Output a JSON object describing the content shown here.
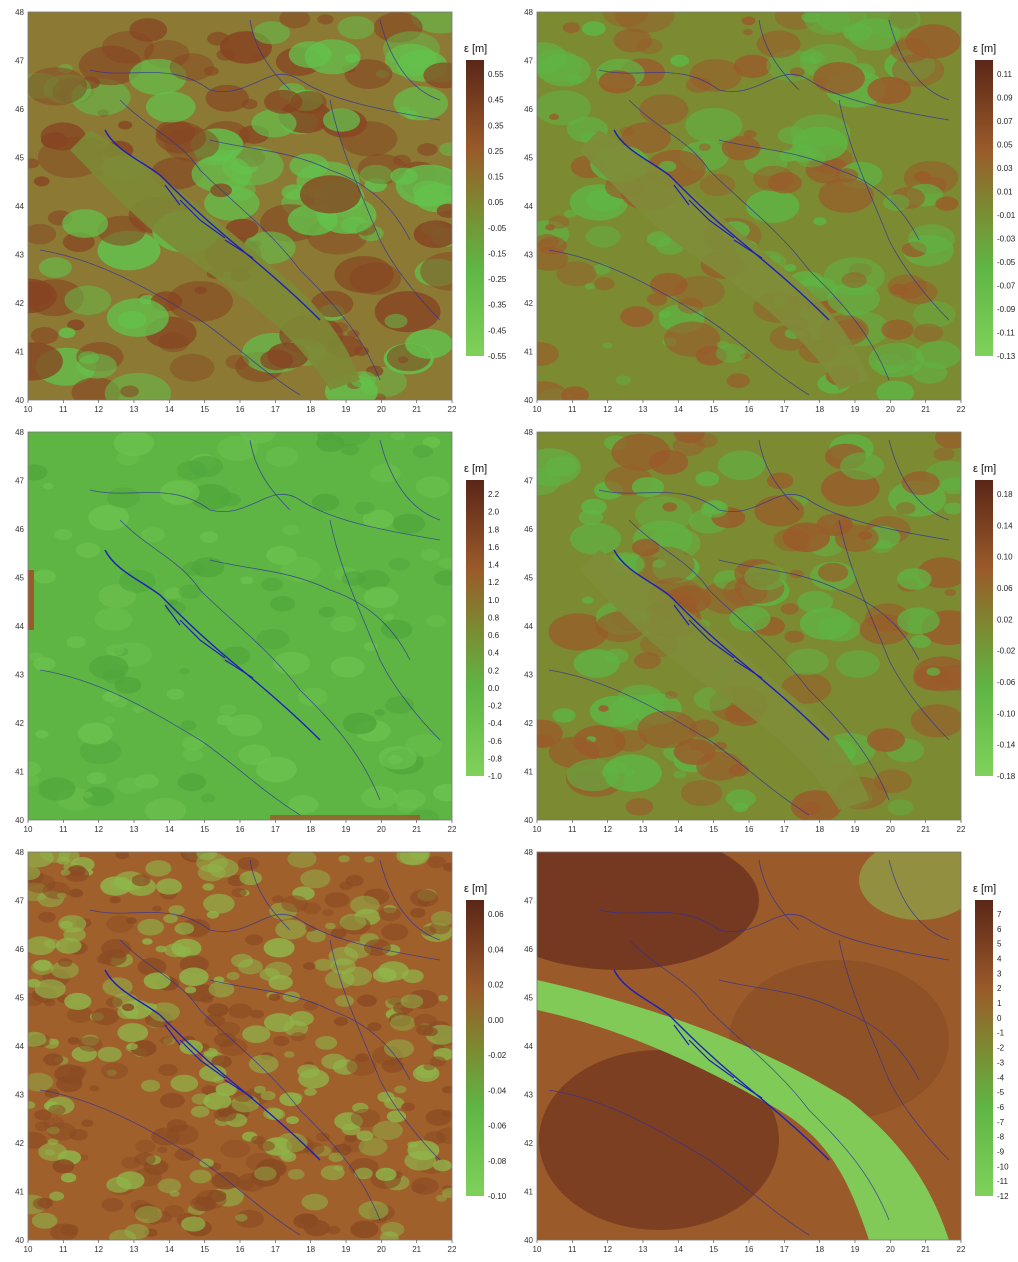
{
  "figure": {
    "panels": [
      {
        "id": "top-left",
        "colorbar_title": "ε [m]",
        "colorbar_labels": [
          "0.55",
          "0.45",
          "0.35",
          "0.25",
          "0.15",
          "0.05",
          "-0.05",
          "-0.15",
          "-0.25",
          "-0.35",
          "-0.45",
          "-0.55"
        ],
        "y_ticks": [
          "48",
          "47",
          "46",
          "45",
          "44",
          "43",
          "42",
          "41",
          "40"
        ],
        "x_ticks": [
          "10",
          "11",
          "12",
          "13",
          "14",
          "15",
          "16",
          "17",
          "18",
          "19",
          "20",
          "21",
          "22"
        ],
        "style": "mixed"
      },
      {
        "id": "top-right",
        "colorbar_title": "ε [m]",
        "colorbar_labels": [
          "0.11",
          "0.09",
          "0.07",
          "0.05",
          "0.03",
          "0.01",
          "-0.01",
          "-0.03",
          "-0.05",
          "-0.07",
          "-0.09",
          "-0.11",
          "-0.13"
        ],
        "y_ticks": [
          "48",
          "47",
          "46",
          "45",
          "44",
          "43",
          "42",
          "41",
          "40"
        ],
        "x_ticks": [
          "10",
          "11",
          "12",
          "13",
          "14",
          "15",
          "16",
          "17",
          "18",
          "19",
          "20",
          "21",
          "22"
        ],
        "style": "olive"
      },
      {
        "id": "middle-left",
        "colorbar_title": "ε [m]",
        "colorbar_labels": [
          "2.2",
          "2.0",
          "1.8",
          "1.6",
          "1.4",
          "1.2",
          "1.0",
          "0.8",
          "0.6",
          "0.4",
          "0.2",
          "0.0",
          "-0.2",
          "-0.4",
          "-0.6",
          "-0.8",
          "-1.0"
        ],
        "y_ticks": [
          "48",
          "47",
          "46",
          "45",
          "44",
          "43",
          "42",
          "41",
          "40"
        ],
        "x_ticks": [
          "10",
          "11",
          "12",
          "13",
          "14",
          "15",
          "16",
          "17",
          "18",
          "19",
          "20",
          "21",
          "22"
        ],
        "style": "green"
      },
      {
        "id": "middle-right",
        "colorbar_title": "ε [m]",
        "colorbar_labels": [
          "0.18",
          "0.14",
          "0.10",
          "0.06",
          "0.02",
          "-0.02",
          "-0.06",
          "-0.10",
          "-0.14",
          "-0.18"
        ],
        "y_ticks": [
          "48",
          "47",
          "46",
          "45",
          "44",
          "43",
          "42",
          "41",
          "40"
        ],
        "x_ticks": [
          "10",
          "11",
          "12",
          "13",
          "14",
          "15",
          "16",
          "17",
          "18",
          "19",
          "20",
          "21",
          "22"
        ],
        "style": "olive"
      },
      {
        "id": "bottom-left",
        "colorbar_title": "ε [m]",
        "colorbar_labels": [
          "0.06",
          "0.04",
          "0.02",
          "0.00",
          "-0.02",
          "-0.04",
          "-0.06",
          "-0.08",
          "-0.10"
        ],
        "y_ticks": [
          "48",
          "47",
          "46",
          "45",
          "44",
          "43",
          "42",
          "41",
          "40"
        ],
        "x_ticks": [
          "10",
          "11",
          "12",
          "13",
          "14",
          "15",
          "16",
          "17",
          "18",
          "19",
          "20",
          "21",
          "22"
        ],
        "style": "brownish"
      },
      {
        "id": "bottom-right",
        "colorbar_title": "ε [m]",
        "colorbar_labels": [
          "7",
          "6",
          "5",
          "4",
          "3",
          "2",
          "1",
          "0",
          "-1",
          "-2",
          "-3",
          "-4",
          "-5",
          "-6",
          "-7",
          "-8",
          "-9",
          "-10",
          "-11",
          "-12"
        ],
        "y_ticks": [
          "48",
          "47",
          "46",
          "45",
          "44",
          "43",
          "42",
          "41",
          "40"
        ],
        "x_ticks": [
          "10",
          "11",
          "12",
          "13",
          "14",
          "15",
          "16",
          "17",
          "18",
          "19",
          "20",
          "21",
          "22"
        ],
        "style": "smooth"
      }
    ],
    "colors": {
      "dark_brown": "#5a2618",
      "brown": "#9a5a2a",
      "olive": "#7c8a32",
      "green": "#5fb544",
      "light_green": "#7fd15a",
      "border_line": "#2a2fa0"
    }
  }
}
